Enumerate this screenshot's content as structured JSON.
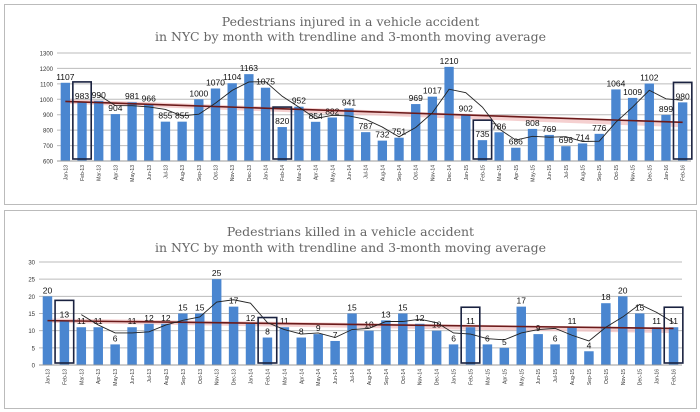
{
  "chart_data": [
    {
      "type": "bar",
      "title_line1": "Pedestrians injured in a vehicle accident",
      "title_line2": "in NYC by month with trendline and 3-month moving average",
      "categories": [
        "Jan-13",
        "Feb-13",
        "Mar-13",
        "Apr-13",
        "May-13",
        "Jun-13",
        "Jul-13",
        "Aug-13",
        "Sep-13",
        "Oct-13",
        "Nov-13",
        "Dec-13",
        "Jan-14",
        "Feb-14",
        "Mar-14",
        "Apr-14",
        "May-14",
        "Jun-14",
        "Jul-14",
        "Aug-14",
        "Sep-14",
        "Oct-14",
        "Nov-14",
        "Dec-14",
        "Jan-15",
        "Feb-15",
        "Mar-15",
        "Apr-15",
        "May-15",
        "Jun-15",
        "Jul-15",
        "Aug-15",
        "Sep-15",
        "Oct-15",
        "Nov-15",
        "Dec-15",
        "Jan-16",
        "Feb-16"
      ],
      "values": [
        1107,
        983,
        990,
        904,
        981,
        966,
        855,
        855,
        1000,
        1070,
        1104,
        1163,
        1075,
        820,
        952,
        854,
        882,
        941,
        787,
        732,
        751,
        969,
        1017,
        1210,
        902,
        735,
        786,
        686,
        808,
        769,
        696,
        714,
        776,
        1064,
        1009,
        1102,
        899,
        980
      ],
      "ylim": [
        600,
        1300
      ],
      "yticks": [
        "600",
        "700",
        "800",
        "900",
        "1000",
        "1100",
        "1200",
        "1300"
      ],
      "grid": true,
      "highlighted": [
        "Feb-13",
        "Feb-14",
        "Feb-15",
        "Feb-16"
      ],
      "overlays": [
        "linear trendline",
        "3-month moving average"
      ],
      "colors": {
        "bar": "#4a86d0",
        "trend": "#6b1a1a",
        "band": "#f2c4c4",
        "ma": "#222222",
        "box": "#1a2240"
      }
    },
    {
      "type": "bar",
      "title_line1": "Pedestrians killed in a vehicle accident",
      "title_line2": "in NYC  by month with trendline and 3-month moving average",
      "categories": [
        "Jan-13",
        "Feb-13",
        "Mar-13",
        "Apr-13",
        "May-13",
        "Jun-13",
        "Jul-13",
        "Aug-13",
        "Sep-13",
        "Oct-13",
        "Nov-13",
        "Dec-13",
        "Jan-14",
        "Feb-14",
        "Mar-14",
        "Apr-14",
        "May-14",
        "Jun-14",
        "Jul-14",
        "Aug-14",
        "Sep-14",
        "Oct-14",
        "Nov-14",
        "Dec-14",
        "Jan-15",
        "Feb-15",
        "Mar-15",
        "Apr-15",
        "May-15",
        "Jun-15",
        "Jul-15",
        "Aug-15",
        "Sep-15",
        "Oct-15",
        "Nov-15",
        "Dec-15",
        "Jan-16",
        "Feb-16"
      ],
      "values": [
        20,
        13,
        11,
        11,
        6,
        11,
        12,
        12,
        15,
        15,
        25,
        17,
        12,
        8,
        11,
        8,
        9,
        7,
        15,
        10,
        13,
        15,
        12,
        10,
        6,
        11,
        6,
        5,
        17,
        9,
        6,
        11,
        4,
        18,
        20,
        15,
        11,
        11
      ],
      "ylim": [
        0,
        30
      ],
      "yticks": [
        "0",
        "5",
        "10",
        "15",
        "20",
        "25",
        "30"
      ],
      "grid": true,
      "highlighted": [
        "Feb-13",
        "Feb-14",
        "Feb-15",
        "Feb-16"
      ],
      "overlays": [
        "linear trendline",
        "3-month moving average"
      ],
      "colors": {
        "bar": "#4a86d0",
        "trend": "#6b1a1a",
        "band": "#f2c4c4",
        "ma": "#222222",
        "box": "#1a2240"
      }
    }
  ]
}
